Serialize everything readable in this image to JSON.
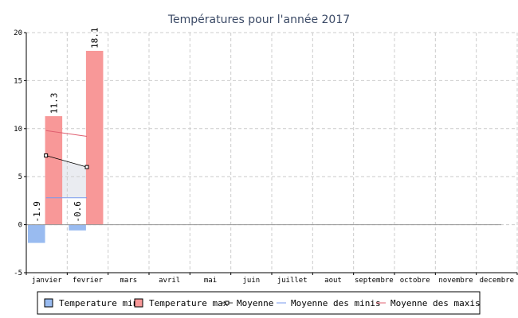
{
  "chart_data": {
    "type": "bar",
    "title": "Températures pour l'année 2017",
    "categories": [
      "janvier",
      "fevrier",
      "mars",
      "avril",
      "mai",
      "juin",
      "juillet",
      "aout",
      "septembre",
      "octobre",
      "novembre",
      "decembre"
    ],
    "ylim": [
      -5,
      20
    ],
    "yticks": [
      -5,
      0,
      5,
      10,
      15,
      20
    ],
    "grid": true,
    "legend_position": "bottom",
    "series": [
      {
        "name": "Temperature min",
        "kind": "bar",
        "color": "#99bbf0",
        "values": [
          -1.9,
          -0.6,
          null,
          null,
          null,
          null,
          null,
          null,
          null,
          null,
          null,
          null
        ]
      },
      {
        "name": "Temperature max",
        "kind": "bar",
        "color": "#f89898",
        "values": [
          11.3,
          18.1,
          null,
          null,
          null,
          null,
          null,
          null,
          null,
          null,
          null,
          null
        ]
      },
      {
        "name": "Moyenne",
        "kind": "line-markers",
        "color": "#000000",
        "values": [
          7.2,
          6.0,
          null,
          null,
          null,
          null,
          null,
          null,
          null,
          null,
          null,
          null
        ]
      },
      {
        "name": "Moyenne des minis",
        "kind": "line",
        "color": "#7799ee",
        "values": [
          2.8,
          2.8,
          null,
          null,
          null,
          null,
          null,
          null,
          null,
          null,
          null,
          null
        ]
      },
      {
        "name": "Moyenne des maxis",
        "kind": "line",
        "color": "#e06070",
        "values": [
          9.8,
          9.2,
          null,
          null,
          null,
          null,
          null,
          null,
          null,
          null,
          null,
          null
        ]
      }
    ],
    "data_labels": {
      "Temperature min": [
        "-1.9",
        "-0.6"
      ],
      "Temperature max": [
        "11.3",
        "18.1"
      ]
    }
  }
}
